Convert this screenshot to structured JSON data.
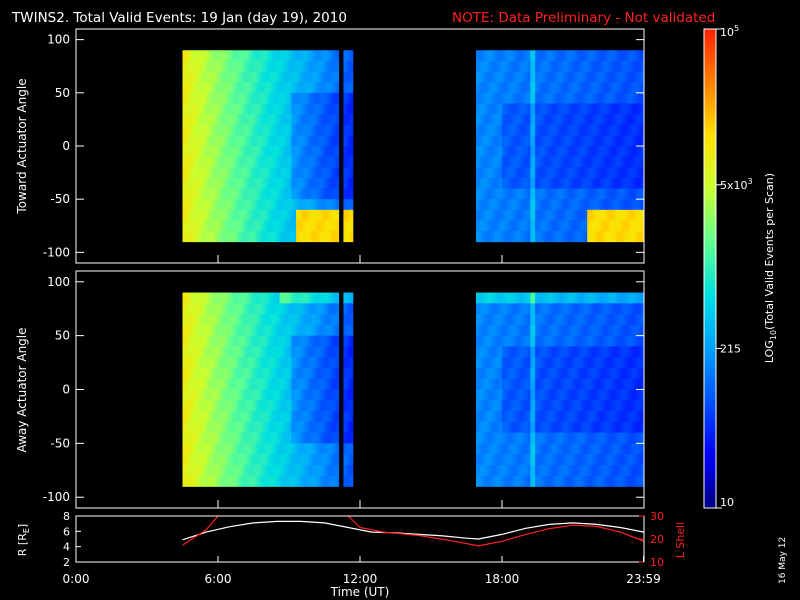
{
  "header": {
    "title": "TWINS2. Total Valid Events: 19 Jan (day  19), 2010",
    "note": "NOTE: Data Preliminary - Not validated"
  },
  "colorbar": {
    "label_prefix": "LOG",
    "label_sub": "10",
    "label_suffix": "(Total Valid Events per Scan)",
    "ticks": [
      {
        "text": "10",
        "value": 10
      },
      {
        "text": "215",
        "value": 215
      },
      {
        "text": "5x10",
        "sup": "3",
        "value": 5000
      },
      {
        "text": "10",
        "sup": "5",
        "value": 100000
      }
    ],
    "colors": [
      "#000080",
      "#0000ff",
      "#0050ff",
      "#00a0ff",
      "#00e0e0",
      "#60ff90",
      "#c8ff30",
      "#ffe000",
      "#ff8000",
      "#ff2000"
    ]
  },
  "footer": {
    "xlabel": "Time (UT)",
    "date_stamp": "16 May 12"
  },
  "chart_data": [
    {
      "type": "heatmap",
      "ylabel": "Toward Actuator Angle",
      "xlim": [
        0,
        24
      ],
      "ylim": [
        -110,
        110
      ],
      "yticks": [
        100,
        50,
        0,
        -50,
        -100
      ],
      "data_extent": [
        -90,
        90
      ],
      "data_intervals": [
        [
          4.5,
          11.1
        ],
        [
          11.3,
          11.7
        ],
        [
          16.9,
          24
        ]
      ],
      "colorscale": "LOG10(Total Valid Events per Scan)"
    },
    {
      "type": "heatmap",
      "ylabel": "Away Actuator Angle",
      "xlim": [
        0,
        24
      ],
      "ylim": [
        -110,
        110
      ],
      "yticks": [
        100,
        50,
        0,
        -50,
        -100
      ],
      "data_extent": [
        -90,
        90
      ],
      "data_intervals": [
        [
          4.5,
          11.1
        ],
        [
          11.3,
          11.7
        ],
        [
          16.9,
          24
        ]
      ],
      "colorscale": "LOG10(Total Valid Events per Scan)"
    },
    {
      "type": "line",
      "ylabel": "R [R",
      "ylabel_sub": "E",
      "ylabel_end": "]",
      "y2label": "L Shell",
      "xlim": [
        0,
        24
      ],
      "ylim": [
        2,
        8
      ],
      "y2lim": [
        10,
        30
      ],
      "yticks": [
        8,
        6,
        4,
        2
      ],
      "y2ticks": [
        30,
        20,
        10
      ],
      "xticks": [
        {
          "label": "0:00",
          "t": 0
        },
        {
          "label": "6:00",
          "t": 6
        },
        {
          "label": "12:00",
          "t": 12
        },
        {
          "label": "18:00",
          "t": 18
        },
        {
          "label": "23:59",
          "t": 23.98
        }
      ],
      "series": [
        {
          "axis": "left",
          "color": "#ffffff",
          "x": [
            4.5,
            5.5,
            6.5,
            7.5,
            8.5,
            9.5,
            10.5,
            11.5,
            12.5,
            13.5,
            14.5,
            15.5,
            16.5,
            17.0,
            18.0,
            19.0,
            20.0,
            21.0,
            22.0,
            23.0,
            24.0
          ],
          "y": [
            4.9,
            5.9,
            6.6,
            7.1,
            7.3,
            7.3,
            7.1,
            6.5,
            5.9,
            5.8,
            5.6,
            5.4,
            5.1,
            5.0,
            5.6,
            6.4,
            6.9,
            7.1,
            6.9,
            6.5,
            5.9
          ]
        },
        {
          "axis": "right",
          "color": "#ff2020",
          "x": [
            4.5,
            5.5,
            6.0,
            6.2,
            10.5,
            11.5,
            12.0,
            13.0,
            14.5,
            16.0,
            17.0,
            18.0,
            19.0,
            20.0,
            21.0,
            22.0,
            23.0,
            24.0
          ],
          "y": [
            17.3,
            24.0,
            30.0,
            31.5,
            31.5,
            30.0,
            25.0,
            23.0,
            21.5,
            19.0,
            17.0,
            19.0,
            22.0,
            24.5,
            26.0,
            25.5,
            23.0,
            19.0
          ]
        }
      ]
    }
  ]
}
